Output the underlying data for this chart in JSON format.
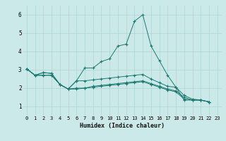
{
  "xlabel": "Humidex (Indice chaleur)",
  "background_color": "#cce9e9",
  "line_color": "#1a7a6e",
  "grid_color": "#add4d4",
  "ylim": [
    0.5,
    6.5
  ],
  "xlim": [
    -0.5,
    23.5
  ],
  "series": [
    [
      3.05,
      2.7,
      2.85,
      2.8,
      2.2,
      1.95,
      2.4,
      3.1,
      3.1,
      3.45,
      3.6,
      4.3,
      4.4,
      5.65,
      6.0,
      4.3,
      3.5,
      2.7,
      2.05,
      1.35,
      1.35,
      1.35,
      1.25
    ],
    [
      3.05,
      2.7,
      2.85,
      2.8,
      2.2,
      1.95,
      2.4,
      2.4,
      2.45,
      2.5,
      2.55,
      2.6,
      2.65,
      2.7,
      2.75,
      2.5,
      2.3,
      2.1,
      2.05,
      1.6,
      1.4,
      1.35,
      1.25
    ],
    [
      3.05,
      2.7,
      2.7,
      2.7,
      2.2,
      1.95,
      2.0,
      2.0,
      2.1,
      2.15,
      2.2,
      2.25,
      2.3,
      2.35,
      2.4,
      2.25,
      2.1,
      1.95,
      1.85,
      1.5,
      1.35,
      1.35,
      1.25
    ],
    [
      3.05,
      2.7,
      2.7,
      2.7,
      2.2,
      1.95,
      1.95,
      2.0,
      2.05,
      2.1,
      2.15,
      2.2,
      2.25,
      2.3,
      2.35,
      2.2,
      2.05,
      1.9,
      1.8,
      1.4,
      1.35,
      1.35,
      1.25
    ]
  ],
  "x_ticks": [
    0,
    1,
    2,
    3,
    4,
    5,
    6,
    7,
    8,
    9,
    10,
    11,
    12,
    13,
    14,
    15,
    16,
    17,
    18,
    19,
    20,
    21,
    22,
    23
  ],
  "x_tick_labels": [
    "0",
    "1",
    "2",
    "3",
    "4",
    "5",
    "6",
    "7",
    "8",
    "9",
    "10",
    "11",
    "12",
    "13",
    "14",
    "15",
    "16",
    "17",
    "18",
    "19",
    "20",
    "21",
    "22",
    "23"
  ],
  "y_ticks": [
    1,
    2,
    3,
    4,
    5,
    6
  ],
  "marker": "+"
}
